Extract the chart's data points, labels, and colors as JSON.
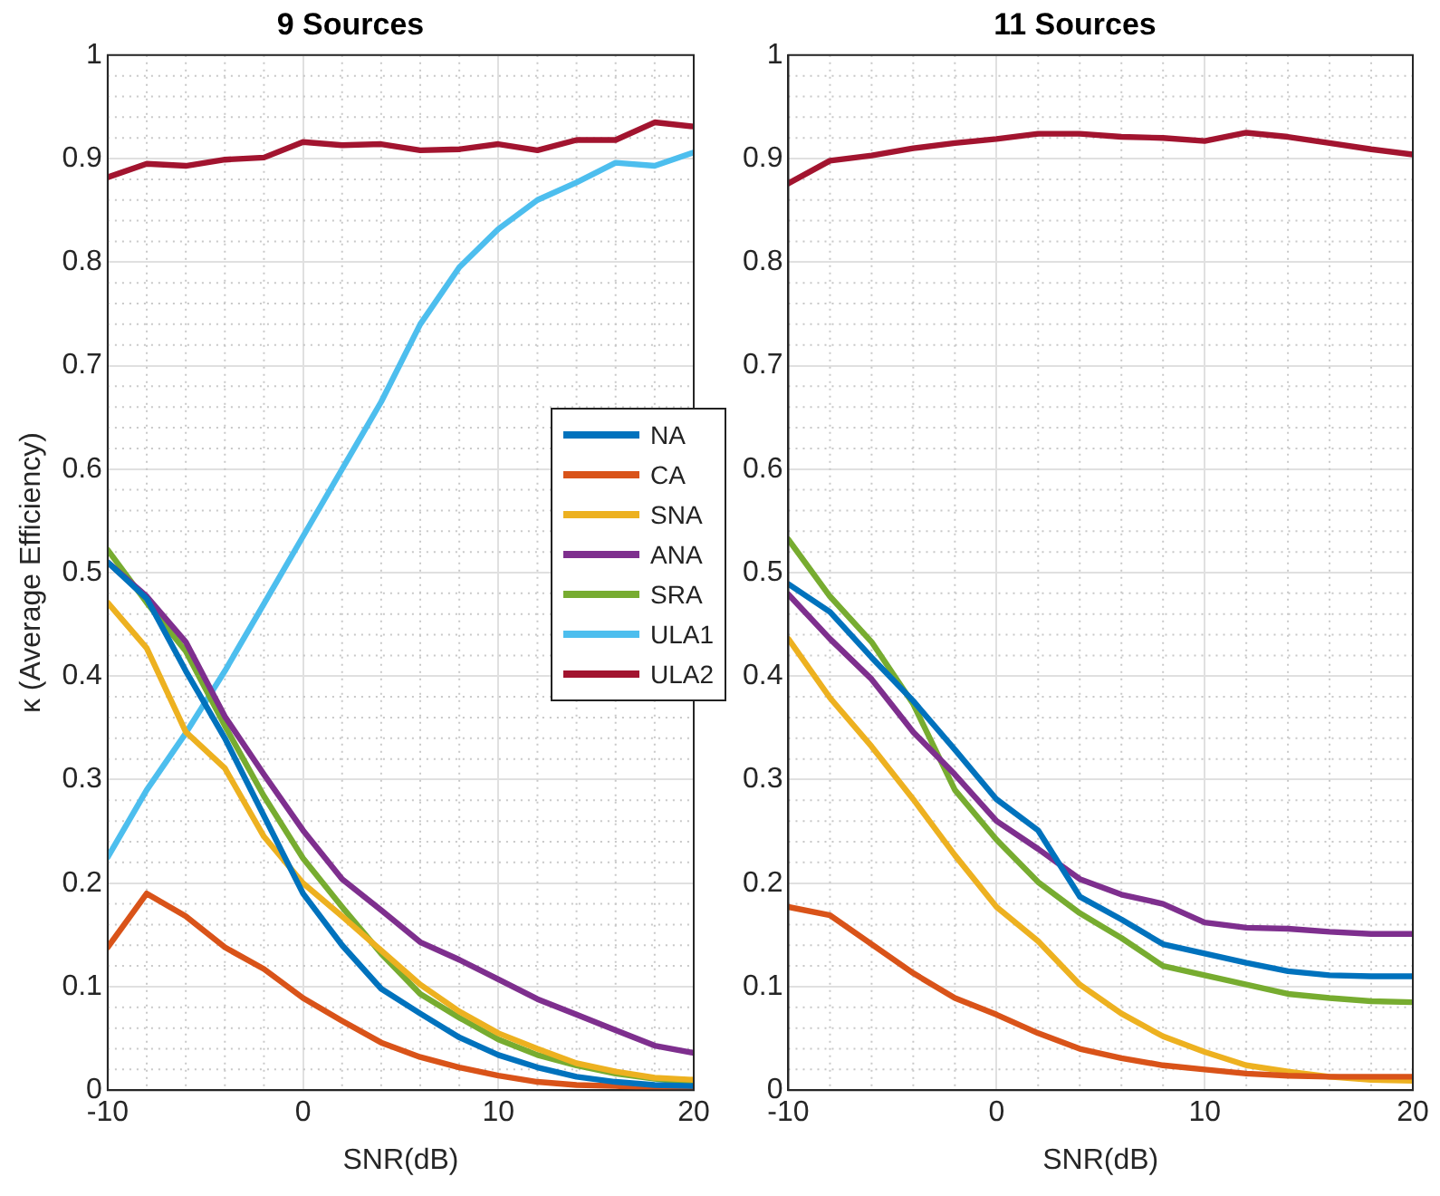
{
  "chart_data": [
    {
      "type": "line",
      "title": "9 Sources",
      "xlabel": "SNR(dB)",
      "ylabel": "κ (Average Efficiency)",
      "x": [
        -10,
        -8,
        -6,
        -4,
        -2,
        0,
        2,
        4,
        6,
        8,
        10,
        12,
        14,
        16,
        18,
        20
      ],
      "xlim": [
        -10,
        20
      ],
      "xticks": [
        -10,
        0,
        10,
        20
      ],
      "ylim": [
        0,
        1
      ],
      "yticks": [
        0,
        0.1,
        0.2,
        0.3,
        0.4,
        0.5,
        0.6,
        0.7,
        0.8,
        0.9,
        1
      ],
      "grid": true,
      "legend": "right",
      "line_style": "solid",
      "marker": "none",
      "series": [
        {
          "name": "NA",
          "color": "#0072bd",
          "values": [
            0.51,
            0.475,
            0.405,
            0.34,
            0.265,
            0.19,
            0.14,
            0.098,
            0.074,
            0.051,
            0.034,
            0.022,
            0.013,
            0.008,
            0.005,
            0.004
          ]
        },
        {
          "name": "CA",
          "color": "#d95319",
          "values": [
            0.138,
            0.19,
            0.168,
            0.138,
            0.117,
            0.089,
            0.067,
            0.046,
            0.032,
            0.022,
            0.014,
            0.008,
            0.005,
            0.004,
            0.002,
            0.002
          ]
        },
        {
          "name": "SNA",
          "color": "#edb120",
          "values": [
            0.471,
            0.427,
            0.346,
            0.311,
            0.245,
            0.2,
            0.168,
            0.135,
            0.102,
            0.076,
            0.055,
            0.04,
            0.026,
            0.018,
            0.012,
            0.01
          ]
        },
        {
          "name": "ANA",
          "color": "#7e2f8e",
          "values": [
            0.51,
            0.477,
            0.433,
            0.361,
            0.305,
            0.251,
            0.204,
            0.174,
            0.143,
            0.126,
            0.107,
            0.088,
            0.073,
            0.058,
            0.043,
            0.036
          ]
        },
        {
          "name": "SRA",
          "color": "#77ac30",
          "values": [
            0.522,
            0.471,
            0.424,
            0.352,
            0.284,
            0.224,
            0.177,
            0.132,
            0.093,
            0.07,
            0.049,
            0.034,
            0.024,
            0.016,
            0.011,
            0.007
          ]
        },
        {
          "name": "ULA1",
          "color": "#4dbeee",
          "values": [
            0.225,
            0.29,
            0.345,
            0.405,
            0.47,
            0.535,
            0.6,
            0.665,
            0.74,
            0.795,
            0.832,
            0.86,
            0.877,
            0.896,
            0.893,
            0.906
          ]
        },
        {
          "name": "ULA2",
          "color": "#a2142f",
          "values": [
            0.882,
            0.895,
            0.893,
            0.899,
            0.901,
            0.916,
            0.913,
            0.914,
            0.908,
            0.909,
            0.914,
            0.908,
            0.918,
            0.918,
            0.935,
            0.931
          ]
        }
      ]
    },
    {
      "type": "line",
      "title": "11 Sources",
      "xlabel": "SNR(dB)",
      "x": [
        -10,
        -8,
        -6,
        -4,
        -2,
        0,
        2,
        4,
        6,
        8,
        10,
        12,
        14,
        16,
        18,
        20
      ],
      "xlim": [
        -10,
        20
      ],
      "xticks": [
        -10,
        0,
        10,
        20
      ],
      "ylim": [
        0,
        1
      ],
      "yticks": [
        0,
        0.1,
        0.2,
        0.3,
        0.4,
        0.5,
        0.6,
        0.7,
        0.8,
        0.9,
        1
      ],
      "grid": true,
      "line_style": "solid",
      "marker": "none",
      "series": [
        {
          "color": "#0072bd",
          "values": [
            0.489,
            0.462,
            0.418,
            0.376,
            0.329,
            0.281,
            0.251,
            0.187,
            0.165,
            0.141,
            0.132,
            0.123,
            0.115,
            0.111,
            0.11,
            0.11
          ]
        },
        {
          "color": "#d95319",
          "values": [
            0.177,
            0.169,
            0.141,
            0.113,
            0.089,
            0.073,
            0.055,
            0.04,
            0.031,
            0.024,
            0.02,
            0.016,
            0.014,
            0.013,
            0.013,
            0.013
          ]
        },
        {
          "color": "#edb120",
          "values": [
            0.436,
            0.379,
            0.332,
            0.281,
            0.227,
            0.177,
            0.144,
            0.102,
            0.074,
            0.052,
            0.037,
            0.024,
            0.018,
            0.013,
            0.01,
            0.009
          ]
        },
        {
          "color": "#7e2f8e",
          "values": [
            0.479,
            0.436,
            0.397,
            0.346,
            0.305,
            0.26,
            0.233,
            0.204,
            0.189,
            0.18,
            0.162,
            0.157,
            0.156,
            0.153,
            0.151,
            0.151
          ]
        },
        {
          "color": "#77ac30",
          "values": [
            0.532,
            0.477,
            0.433,
            0.373,
            0.29,
            0.242,
            0.201,
            0.171,
            0.147,
            0.12,
            0.111,
            0.102,
            0.093,
            0.089,
            0.086,
            0.085
          ]
        },
        {
          "color": "#a2142f",
          "values": [
            0.876,
            0.898,
            0.903,
            0.91,
            0.915,
            0.919,
            0.924,
            0.924,
            0.921,
            0.92,
            0.917,
            0.925,
            0.921,
            0.915,
            0.909,
            0.904
          ]
        }
      ]
    }
  ]
}
